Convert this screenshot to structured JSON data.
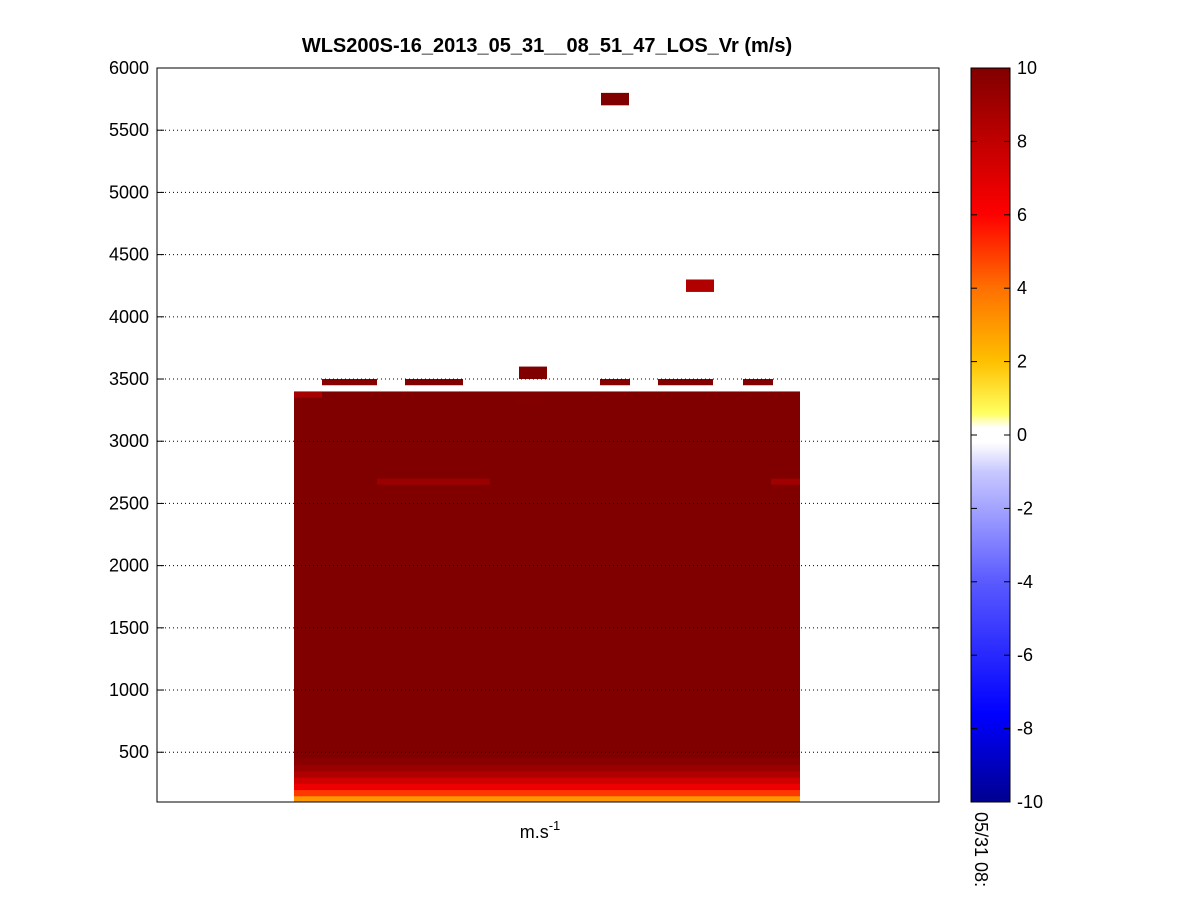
{
  "chart_data": {
    "type": "heatmap",
    "title": "WLS200S-16_2013_05_31__08_51_47_LOS_Vr (m/s)",
    "xlabel_base": "m.s",
    "xlabel_exp": "-1",
    "ylabel": "",
    "ylim": [
      100,
      6000
    ],
    "yticks": [
      500,
      1000,
      1500,
      2000,
      2500,
      3000,
      3500,
      4000,
      4500,
      5000,
      5500,
      6000
    ],
    "grid": "horizontal-dotted",
    "colormap": "blue-white-red",
    "clim": [
      -10,
      10
    ],
    "colorbar": {
      "ticks": [
        10,
        8,
        6,
        4,
        2,
        0,
        -2,
        -4,
        -6,
        -8,
        -10
      ],
      "time_label": "05/31 08:"
    },
    "data_block": {
      "y_range": [
        100,
        3400
      ],
      "dominant_value": 10,
      "bottom_gradient": [
        {
          "y": 100,
          "value": 3
        },
        {
          "y": 150,
          "value": 5
        },
        {
          "y": 200,
          "value": 6.5
        },
        {
          "y": 250,
          "value": 7.5
        },
        {
          "y": 300,
          "value": 8.5
        },
        {
          "y": 350,
          "value": 9.2
        },
        {
          "y": 400,
          "value": 9.7
        }
      ]
    },
    "isolated_cells": [
      {
        "y": 5750,
        "value": 10
      },
      {
        "y": 4250,
        "value": 8.5
      },
      {
        "y": 3550,
        "value": 10
      }
    ]
  }
}
